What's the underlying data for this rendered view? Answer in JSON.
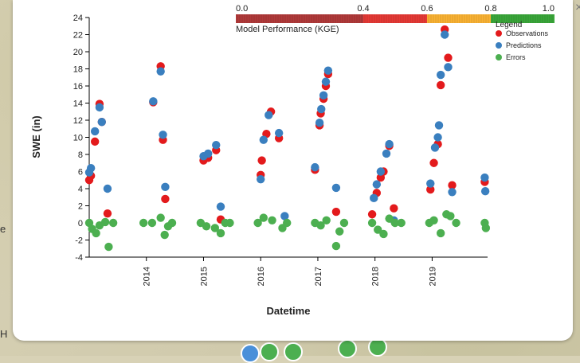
{
  "map": {
    "left_labels": [
      "e",
      "H"
    ]
  },
  "popup": {
    "close_label": "×"
  },
  "colorbar": {
    "ticks": [
      "0.0",
      "0.4",
      "0.6",
      "0.8",
      "1.0"
    ],
    "label": "Model Performance (KGE)",
    "segments": [
      {
        "from": 0.0,
        "to": 0.4,
        "color": "#b03a3a"
      },
      {
        "from": 0.4,
        "to": 0.6,
        "color": "#e53935"
      },
      {
        "from": 0.6,
        "to": 0.8,
        "color": "#f9b233"
      },
      {
        "from": 0.8,
        "to": 1.0,
        "color": "#3aa63a"
      }
    ]
  },
  "chart_data": {
    "type": "scatter",
    "xlabel": "Datetime",
    "ylabel": "SWE (in)",
    "ylim": [
      -4,
      24
    ],
    "yticks": [
      -4,
      -2,
      0,
      2,
      4,
      6,
      8,
      10,
      12,
      14,
      16,
      18,
      20,
      22,
      24
    ],
    "xlim": [
      2013.0,
      2019.97
    ],
    "xticks": [
      {
        "value": 2014.0,
        "label": "2014"
      },
      {
        "value": 2015.0,
        "label": "2015"
      },
      {
        "value": 2016.0,
        "label": "2016"
      },
      {
        "value": 2017.0,
        "label": "2017"
      },
      {
        "value": 2018.0,
        "label": "2018"
      },
      {
        "value": 2019.0,
        "label": "2019"
      }
    ],
    "legend": {
      "title": "Legend",
      "position": "top-right",
      "entries": [
        {
          "label": "Observations",
          "color": "#e31a1c"
        },
        {
          "label": "Predictions",
          "color": "#3a7fbf"
        },
        {
          "label": "Errors",
          "color": "#4caf50"
        }
      ]
    },
    "series": [
      {
        "name": "Observations",
        "color": "#e31a1c",
        "points": [
          [
            2013.0,
            5.0
          ],
          [
            2013.03,
            5.5
          ],
          [
            2013.1,
            9.5
          ],
          [
            2013.18,
            13.9
          ],
          [
            2013.22,
            11.8
          ],
          [
            2013.32,
            1.1
          ],
          [
            2014.12,
            14.1
          ],
          [
            2014.25,
            18.3
          ],
          [
            2014.29,
            9.7
          ],
          [
            2014.33,
            2.8
          ],
          [
            2015.0,
            7.3
          ],
          [
            2015.08,
            7.6
          ],
          [
            2015.22,
            8.5
          ],
          [
            2015.3,
            0.4
          ],
          [
            2016.0,
            5.6
          ],
          [
            2016.02,
            7.3
          ],
          [
            2016.1,
            10.4
          ],
          [
            2016.18,
            13.0
          ],
          [
            2016.32,
            9.9
          ],
          [
            2016.95,
            6.2
          ],
          [
            2017.03,
            11.4
          ],
          [
            2017.05,
            12.8
          ],
          [
            2017.1,
            14.5
          ],
          [
            2017.14,
            16.0
          ],
          [
            2017.18,
            17.4
          ],
          [
            2017.32,
            1.3
          ],
          [
            2017.95,
            1.0
          ],
          [
            2018.03,
            3.5
          ],
          [
            2018.1,
            5.3
          ],
          [
            2018.15,
            6.0
          ],
          [
            2018.25,
            9.0
          ],
          [
            2018.33,
            1.7
          ],
          [
            2018.97,
            3.9
          ],
          [
            2019.03,
            7.0
          ],
          [
            2019.1,
            9.2
          ],
          [
            2019.15,
            16.1
          ],
          [
            2019.22,
            22.6
          ],
          [
            2019.28,
            19.3
          ],
          [
            2019.35,
            4.4
          ],
          [
            2019.92,
            4.8
          ]
        ]
      },
      {
        "name": "Predictions",
        "color": "#3a7fbf",
        "points": [
          [
            2013.0,
            5.9
          ],
          [
            2013.03,
            6.4
          ],
          [
            2013.1,
            10.7
          ],
          [
            2013.18,
            13.5
          ],
          [
            2013.22,
            11.8
          ],
          [
            2013.32,
            4.0
          ],
          [
            2014.12,
            14.2
          ],
          [
            2014.25,
            17.7
          ],
          [
            2014.29,
            10.3
          ],
          [
            2014.33,
            4.2
          ],
          [
            2015.0,
            7.8
          ],
          [
            2015.08,
            8.1
          ],
          [
            2015.22,
            9.1
          ],
          [
            2015.3,
            1.9
          ],
          [
            2016.0,
            5.1
          ],
          [
            2016.05,
            9.7
          ],
          [
            2016.14,
            12.6
          ],
          [
            2016.32,
            10.5
          ],
          [
            2016.42,
            0.8
          ],
          [
            2016.95,
            6.5
          ],
          [
            2017.03,
            11.7
          ],
          [
            2017.06,
            13.3
          ],
          [
            2017.1,
            14.9
          ],
          [
            2017.14,
            16.5
          ],
          [
            2017.18,
            17.8
          ],
          [
            2017.32,
            4.1
          ],
          [
            2017.98,
            2.9
          ],
          [
            2018.03,
            4.5
          ],
          [
            2018.1,
            6.0
          ],
          [
            2018.2,
            8.1
          ],
          [
            2018.25,
            9.2
          ],
          [
            2018.33,
            0.3
          ],
          [
            2018.97,
            4.6
          ],
          [
            2019.05,
            8.8
          ],
          [
            2019.1,
            10.0
          ],
          [
            2019.12,
            11.4
          ],
          [
            2019.15,
            17.3
          ],
          [
            2019.22,
            22.0
          ],
          [
            2019.28,
            18.2
          ],
          [
            2019.35,
            3.6
          ],
          [
            2019.92,
            5.3
          ],
          [
            2019.93,
            3.7
          ]
        ]
      },
      {
        "name": "Errors",
        "color": "#4caf50",
        "points": [
          [
            2013.0,
            0.0
          ],
          [
            2013.05,
            -0.7
          ],
          [
            2013.12,
            -1.2
          ],
          [
            2013.18,
            -0.3
          ],
          [
            2013.28,
            0.1
          ],
          [
            2013.34,
            -2.8
          ],
          [
            2013.42,
            0.0
          ],
          [
            2013.95,
            0.0
          ],
          [
            2014.1,
            0.0
          ],
          [
            2014.25,
            0.6
          ],
          [
            2014.32,
            -1.4
          ],
          [
            2014.38,
            -0.4
          ],
          [
            2014.45,
            0.0
          ],
          [
            2014.95,
            0.0
          ],
          [
            2015.05,
            -0.4
          ],
          [
            2015.2,
            -0.6
          ],
          [
            2015.3,
            -1.2
          ],
          [
            2015.38,
            0.0
          ],
          [
            2015.46,
            0.0
          ],
          [
            2015.95,
            0.0
          ],
          [
            2016.05,
            0.6
          ],
          [
            2016.2,
            0.3
          ],
          [
            2016.38,
            -0.6
          ],
          [
            2016.46,
            0.0
          ],
          [
            2016.95,
            0.0
          ],
          [
            2017.05,
            -0.3
          ],
          [
            2017.15,
            0.3
          ],
          [
            2017.32,
            -2.7
          ],
          [
            2017.38,
            -1.0
          ],
          [
            2017.46,
            0.0
          ],
          [
            2017.95,
            0.0
          ],
          [
            2018.05,
            -0.8
          ],
          [
            2018.15,
            -1.3
          ],
          [
            2018.25,
            0.5
          ],
          [
            2018.35,
            0.0
          ],
          [
            2018.46,
            0.0
          ],
          [
            2018.95,
            0.0
          ],
          [
            2019.03,
            0.3
          ],
          [
            2019.15,
            -1.2
          ],
          [
            2019.25,
            1.0
          ],
          [
            2019.32,
            0.8
          ],
          [
            2019.42,
            0.0
          ],
          [
            2019.92,
            0.0
          ],
          [
            2019.94,
            -0.6
          ]
        ]
      }
    ]
  }
}
